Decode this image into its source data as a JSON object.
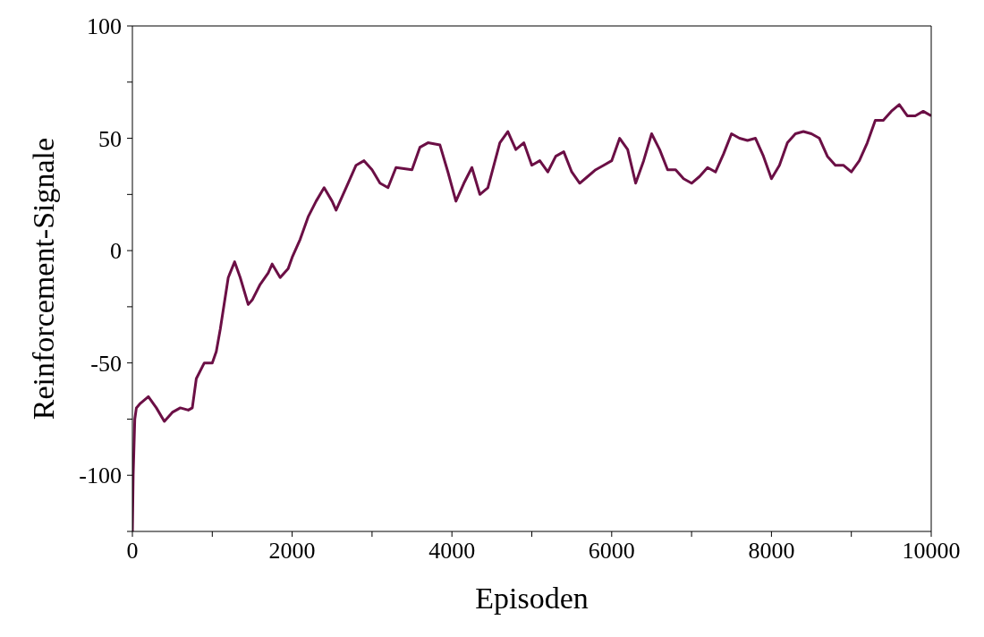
{
  "chart_data": {
    "type": "line",
    "xlabel": "Episoden",
    "ylabel": "Reinforcement-Signale",
    "xlim": [
      0,
      10000
    ],
    "xticks": [
      0,
      {
        "value": 1000,
        "label": null
      },
      2000,
      {
        "value": 3000,
        "label": null
      },
      4000,
      {
        "value": 5000,
        "label": null
      },
      6000,
      {
        "value": 7000,
        "label": null
      },
      8000,
      {
        "value": 9000,
        "label": null
      },
      10000
    ],
    "ylim": [
      -125,
      100
    ],
    "yticks": [
      {
        "value": -125,
        "label": null
      },
      -100,
      {
        "value": -75,
        "label": null
      },
      -50,
      {
        "value": -25,
        "label": null
      },
      0,
      {
        "value": 25,
        "label": null
      },
      50,
      {
        "value": 75,
        "label": null
      },
      100
    ],
    "grid": false,
    "legend": false,
    "marker": "none",
    "line_style": "solid",
    "series": [
      {
        "color": "#6b0f45",
        "x": [
          0,
          10,
          30,
          50,
          100,
          200,
          300,
          400,
          500,
          600,
          700,
          750,
          800,
          900,
          1000,
          1050,
          1100,
          1200,
          1280,
          1350,
          1450,
          1500,
          1600,
          1700,
          1750,
          1850,
          1950,
          2000,
          2100,
          2200,
          2300,
          2400,
          2500,
          2550,
          2700,
          2800,
          2900,
          3000,
          3100,
          3200,
          3300,
          3500,
          3600,
          3700,
          3850,
          3950,
          4050,
          4150,
          4250,
          4350,
          4450,
          4600,
          4700,
          4800,
          4900,
          5000,
          5100,
          5200,
          5300,
          5400,
          5500,
          5600,
          5700,
          5800,
          5900,
          6000,
          6100,
          6200,
          6300,
          6400,
          6500,
          6600,
          6700,
          6800,
          6900,
          7000,
          7100,
          7200,
          7300,
          7400,
          7500,
          7600,
          7700,
          7800,
          7900,
          8000,
          8100,
          8200,
          8300,
          8400,
          8500,
          8600,
          8700,
          8800,
          8900,
          9000,
          9100,
          9200,
          9300,
          9400,
          9500,
          9600,
          9700,
          9800,
          9900,
          10000
        ],
        "values": [
          -125,
          -100,
          -75,
          -70,
          -68,
          -65,
          -70,
          -76,
          -72,
          -70,
          -71,
          -70,
          -57,
          -50,
          -50,
          -45,
          -35,
          -12,
          -5,
          -12,
          -24,
          -22,
          -15,
          -10,
          -6,
          -12,
          -8,
          -3,
          5,
          15,
          22,
          28,
          22,
          18,
          30,
          38,
          40,
          36,
          30,
          28,
          37,
          36,
          46,
          48,
          47,
          35,
          22,
          30,
          37,
          25,
          28,
          48,
          53,
          45,
          48,
          38,
          40,
          35,
          42,
          44,
          35,
          30,
          33,
          36,
          38,
          40,
          50,
          45,
          30,
          40,
          52,
          45,
          36,
          36,
          32,
          30,
          33,
          37,
          35,
          43,
          52,
          50,
          49,
          50,
          42,
          32,
          38,
          48,
          52,
          53,
          52,
          50,
          42,
          38,
          38,
          35,
          40,
          48,
          58,
          58,
          62,
          65,
          60,
          60,
          62,
          60
        ]
      }
    ]
  }
}
